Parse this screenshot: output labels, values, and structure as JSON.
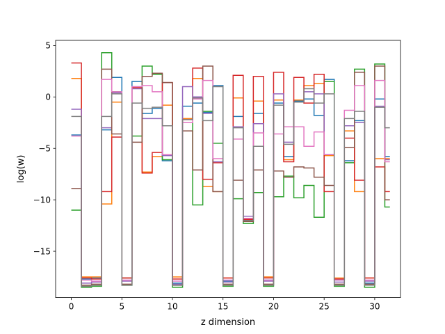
{
  "chart_data": {
    "type": "line",
    "step": "post",
    "title": "",
    "xlabel": "z dimension",
    "ylabel": "log(w)",
    "xlim": [
      -1.55,
      32.55
    ],
    "ylim": [
      -19.5,
      5.5
    ],
    "xticks": [
      0,
      5,
      10,
      15,
      20,
      25,
      30
    ],
    "yticks": [
      -15,
      -10,
      -5,
      0,
      5
    ],
    "grid": false,
    "legend": "none",
    "x": [
      0,
      1,
      2,
      3,
      4,
      5,
      6,
      7,
      8,
      9,
      10,
      11,
      12,
      13,
      14,
      15,
      16,
      17,
      18,
      19,
      20,
      21,
      22,
      23,
      24,
      25,
      26,
      27,
      28,
      29,
      30,
      31
    ],
    "series": [
      {
        "color": "#1f77b4",
        "values": [
          -3.7,
          -17.7,
          -17.6,
          -3.2,
          1.9,
          -17.6,
          1.5,
          -1.6,
          -1.1,
          -6.2,
          -18.1,
          -0.9,
          -0.6,
          -1.5,
          1.1,
          -17.9,
          -1.9,
          -11.9,
          -1.6,
          -17.8,
          -0.6,
          -5.8,
          -0.4,
          -0.2,
          -1.8,
          1.7,
          -17.8,
          -6.2,
          -2.3,
          -18.1,
          -0.2,
          -5.8
        ]
      },
      {
        "color": "#ff7f0e",
        "values": [
          1.8,
          -17.5,
          -17.5,
          -10.4,
          -0.5,
          -17.6,
          0.9,
          -7.3,
          -5.8,
          -0.8,
          -17.5,
          -2.1,
          1.8,
          -8.7,
          -9.2,
          -17.6,
          -0.1,
          -11.6,
          -0.4,
          -17.5,
          -0.3,
          -6.1,
          -0.3,
          1.1,
          1.3,
          -5.7,
          -17.6,
          -3.3,
          -9.2,
          -17.6,
          -6.0,
          -6.0
        ]
      },
      {
        "color": "#2ca02c",
        "values": [
          -11.0,
          -18.5,
          -18.4,
          4.3,
          0.5,
          -18.3,
          -3.8,
          3.0,
          2.2,
          -6.1,
          -18.5,
          -2.5,
          -10.5,
          -1.4,
          -4.5,
          -18.4,
          -9.9,
          -12.3,
          -9.3,
          -18.4,
          -9.7,
          -7.7,
          -9.8,
          -8.6,
          -11.7,
          1.5,
          -18.4,
          -6.4,
          2.7,
          -18.5,
          3.2,
          -10.7
        ]
      },
      {
        "color": "#d62728",
        "values": [
          3.3,
          -17.6,
          -17.7,
          -9.2,
          -3.9,
          -17.6,
          0.9,
          -7.4,
          -5.4,
          1.4,
          -17.7,
          -2.2,
          2.8,
          -8.0,
          -6.4,
          -17.6,
          2.1,
          -11.9,
          2.0,
          -17.6,
          2.4,
          -6.3,
          1.9,
          -0.6,
          2.2,
          -9.2,
          -17.7,
          -4.0,
          -8.1,
          -17.6,
          -6.8,
          -9.2
        ]
      },
      {
        "color": "#9467bd",
        "values": [
          -1.2,
          -18.1,
          -18.0,
          -3.0,
          0.4,
          -17.9,
          0.8,
          -2.1,
          -2.1,
          -5.7,
          -18.2,
          1.0,
          0.0,
          -1.6,
          -6.3,
          -18.0,
          -2.9,
          -11.6,
          -2.6,
          -17.9,
          0.3,
          -4.4,
          -0.5,
          0.5,
          0.3,
          -5.6,
          -18.0,
          -2.8,
          -2.5,
          -17.9,
          -0.9,
          -6.1
        ]
      },
      {
        "color": "#8c564b",
        "values": [
          -8.9,
          -18.3,
          -18.2,
          2.7,
          -3.6,
          -18.2,
          -4.4,
          2.0,
          2.3,
          1.4,
          -18.3,
          -3.3,
          -7.1,
          3.0,
          -9.2,
          -18.2,
          -8.1,
          -12.1,
          -7.1,
          -18.2,
          -7.2,
          -7.8,
          -6.8,
          -6.9,
          -7.8,
          -8.6,
          -18.2,
          -4.9,
          2.4,
          -18.2,
          3.0,
          -10.0
        ]
      },
      {
        "color": "#e377c2",
        "values": [
          -3.8,
          -17.8,
          -17.9,
          1.7,
          0.5,
          -17.8,
          1.0,
          1.1,
          0.5,
          -5.6,
          -17.9,
          -2.5,
          -0.2,
          1.6,
          -6.0,
          -17.8,
          -4.1,
          -11.8,
          -3.5,
          -17.8,
          -3.6,
          -2.9,
          -2.9,
          -4.8,
          -3.4,
          -5.6,
          -17.8,
          -1.3,
          1.1,
          -17.8,
          1.6,
          -6.3
        ]
      },
      {
        "color": "#7f7f7f",
        "values": [
          -1.9,
          -18.4,
          -18.3,
          -1.9,
          0.3,
          -18.3,
          -0.6,
          -1.1,
          -1.0,
          -2.8,
          -18.3,
          -2.2,
          -0.1,
          -2.3,
          1.0,
          -18.3,
          -3.0,
          -12.0,
          -4.8,
          -18.3,
          -0.8,
          -4.6,
          -0.5,
          0.8,
          -0.6,
          0.3,
          -18.3,
          -2.1,
          -1.4,
          -18.3,
          -1.0,
          -3.0
        ]
      }
    ]
  }
}
